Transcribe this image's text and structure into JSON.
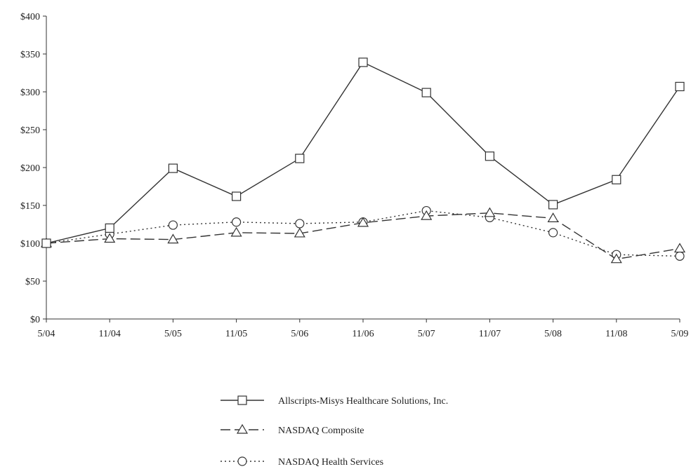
{
  "chart_data": {
    "type": "line",
    "title": "",
    "xlabel": "",
    "ylabel": "",
    "categories": [
      "5/04",
      "11/04",
      "5/05",
      "11/05",
      "5/06",
      "11/06",
      "5/07",
      "11/07",
      "5/08",
      "11/08",
      "5/09"
    ],
    "y_ticks": [
      "$0",
      "$50",
      "$100",
      "$150",
      "$200",
      "$250",
      "$300",
      "$350",
      "$400"
    ],
    "ylim": [
      0,
      400
    ],
    "grid": false,
    "legend_position": "bottom-center",
    "series": [
      {
        "name": "Allscripts-Misys Healthcare Solutions, Inc.",
        "marker": "square",
        "line_style": "solid",
        "values": [
          100,
          120,
          199,
          162,
          212,
          339,
          299,
          215,
          151,
          184,
          307
        ]
      },
      {
        "name": "NASDAQ Composite",
        "marker": "triangle",
        "line_style": "dashed",
        "values": [
          100,
          106,
          105,
          114,
          113,
          127,
          136,
          140,
          133,
          79,
          93
        ]
      },
      {
        "name": "NASDAQ Health Services",
        "marker": "circle",
        "line_style": "dotted",
        "values": [
          100,
          112,
          124,
          128,
          126,
          128,
          143,
          134,
          114,
          85,
          83
        ]
      }
    ]
  }
}
